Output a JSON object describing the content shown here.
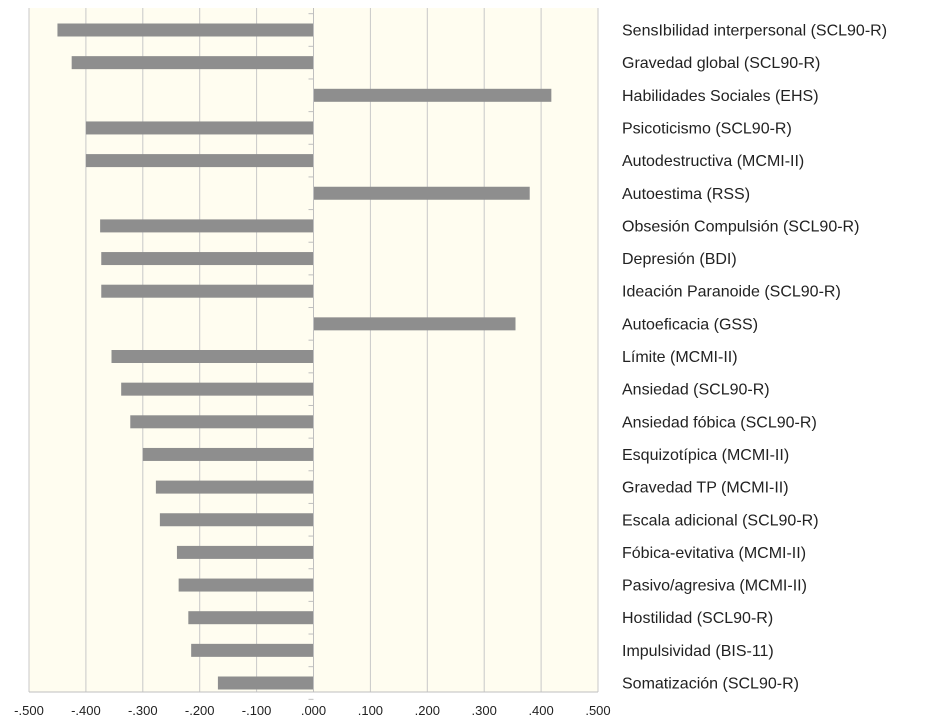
{
  "chart_data": {
    "type": "bar",
    "orientation": "horizontal",
    "categories": [
      "SensIbilidad interpersonal (SCL90-R)",
      "Gravedad global (SCL90-R)",
      "Habilidades Sociales (EHS)",
      "Psicoticismo (SCL90-R)",
      "Autodestructiva (MCMI-II)",
      "Autoestima (RSS)",
      "Obsesión Compulsión (SCL90-R)",
      "Depresión (BDI)",
      "Ideación Paranoide (SCL90-R)",
      "Autoeficacia (GSS)",
      "Límite (MCMI-II)",
      "Ansiedad (SCL90-R)",
      "Ansiedad fóbica (SCL90-R)",
      "Esquizotípica (MCMI-II)",
      "Gravedad TP (MCMI-II)",
      "Escala adicional (SCL90-R)",
      "Fóbica-evitativa (MCMI-II)",
      "Pasivo/agresiva (MCMI-II)",
      "Hostilidad (SCL90-R)",
      "Impulsividad (BIS-11)",
      "Somatización (SCL90-R)"
    ],
    "values": [
      -0.45,
      -0.425,
      0.418,
      -0.4,
      -0.4,
      0.38,
      -0.375,
      -0.373,
      -0.373,
      0.355,
      -0.355,
      -0.338,
      -0.322,
      -0.3,
      -0.277,
      -0.27,
      -0.24,
      -0.237,
      -0.22,
      -0.215,
      -0.168
    ],
    "xlim": [
      -0.5,
      0.5
    ],
    "x_ticks": [
      -0.5,
      -0.4,
      -0.3,
      -0.2,
      -0.1,
      0.0,
      0.1,
      0.2,
      0.3,
      0.4,
      0.5
    ],
    "x_tick_labels": [
      "-.500",
      "-.400",
      "-.300",
      "-.200",
      "-.100",
      ".000",
      ".100",
      ".200",
      ".300",
      ".400",
      ".500"
    ],
    "grid": true,
    "title": "",
    "xlabel": "",
    "ylabel": "",
    "colors": {
      "bar": "#8e8e8e",
      "plot_background": "#fffdf0",
      "grid": "#c8c8c8",
      "axis": "#bfbfbf"
    }
  }
}
